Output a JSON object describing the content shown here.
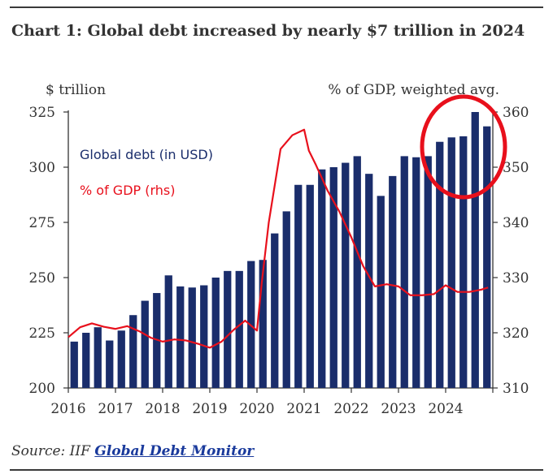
{
  "title": "Chart 1: Global debt increased by nearly $7 trillion in 2024",
  "source": {
    "prefix": "Source: IIF ",
    "link": "Global Debt Monitor"
  },
  "colors": {
    "bar": "#1a2d6b",
    "line": "#e8101c",
    "axis": "#333333",
    "highlight_circle": "#e8101c"
  },
  "chart_data": {
    "type": "bar",
    "title": "Chart 1: Global debt increased by nearly $7 trillion in 2024",
    "ylabel_left": "$ trillion",
    "ylabel_right": "% of GDP, weighted avg.",
    "ylim_left": [
      200,
      325
    ],
    "ylim_right": [
      310,
      360
    ],
    "yticks_left": [
      "200",
      "225",
      "250",
      "275",
      "300",
      "325"
    ],
    "yticks_right": [
      "310",
      "320",
      "330",
      "340",
      "350",
      "360"
    ],
    "xtick_labels": [
      "2016",
      "2017",
      "2018",
      "2019",
      "2020",
      "2021",
      "2022",
      "2023",
      "2024"
    ],
    "xlim": [
      2016.0,
      2025.0
    ],
    "legend": {
      "debt": "Global debt (in USD)",
      "gdp": "% of GDP (rhs)"
    },
    "series": [
      {
        "name": "Global debt (in USD)",
        "axis": "left",
        "kind": "bar",
        "x": [
          2016.125,
          2016.375,
          2016.625,
          2016.875,
          2017.125,
          2017.375,
          2017.625,
          2017.875,
          2018.125,
          2018.375,
          2018.625,
          2018.875,
          2019.125,
          2019.375,
          2019.625,
          2019.875,
          2020.125,
          2020.375,
          2020.625,
          2020.875,
          2021.125,
          2021.375,
          2021.625,
          2021.875,
          2022.125,
          2022.375,
          2022.625,
          2022.875,
          2023.125,
          2023.375,
          2023.625,
          2023.875,
          2024.125,
          2024.375,
          2024.625,
          2024.875
        ],
        "values": [
          221,
          225,
          227.5,
          221.5,
          226,
          233,
          239.5,
          243,
          251,
          246,
          245.5,
          246.5,
          250,
          253,
          253,
          257.5,
          258,
          270,
          280,
          292,
          292,
          299,
          300,
          302,
          305,
          297,
          287,
          296,
          305,
          304.5,
          305,
          311.5,
          313.5,
          314,
          325,
          318.5
        ]
      },
      {
        "name": "% of GDP (rhs)",
        "axis": "right",
        "kind": "line",
        "x": [
          2016.0,
          2016.25,
          2016.5,
          2016.75,
          2017.0,
          2017.25,
          2017.5,
          2017.75,
          2018.0,
          2018.25,
          2018.5,
          2018.75,
          2019.0,
          2019.25,
          2019.5,
          2019.75,
          2020.0,
          2020.1,
          2020.25,
          2020.5,
          2020.75,
          2021.0,
          2021.1,
          2021.25,
          2021.5,
          2021.75,
          2022.0,
          2022.25,
          2022.5,
          2022.75,
          2023.0,
          2023.25,
          2023.5,
          2023.75,
          2024.0,
          2024.25,
          2024.5,
          2024.75,
          2024.9
        ],
        "values": [
          319.2,
          321,
          321.7,
          321.1,
          320.7,
          321.2,
          320.3,
          319.1,
          318.4,
          318.8,
          318.6,
          318.0,
          317.3,
          318.4,
          320.5,
          322.2,
          320.4,
          329,
          340,
          353.3,
          355.8,
          356.8,
          353,
          350.4,
          345.7,
          341.9,
          337.3,
          332.1,
          328.4,
          328.8,
          328.4,
          326.8,
          326.8,
          327.0,
          328.6,
          327.4,
          327.4,
          327.8,
          328.2
        ]
      }
    ],
    "annotation": "red circle highlighting the 2024 bars"
  }
}
